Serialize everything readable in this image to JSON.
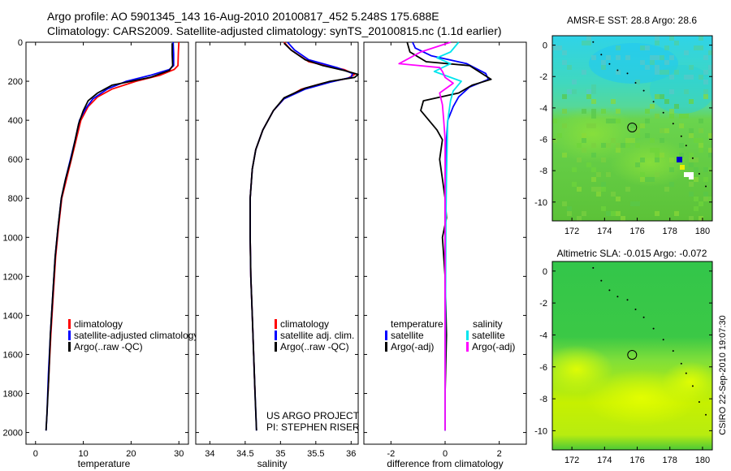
{
  "header": {
    "line1": "Argo profile: AO 5901345_143 16-Aug-2010 20100817_452 5.248S 175.688E",
    "line2": "Climatology: CARS2009. Satellite-adjusted climatology: synTS_20100815.nc (1.1d earlier)"
  },
  "colors": {
    "climatology": "#ff0000",
    "satellite": "#0000ff",
    "argo": "#000000",
    "argo_adj": "#ff00ff",
    "sat_salinity": "#00e5ee"
  },
  "chart_data": [
    {
      "type": "line",
      "name": "temperature",
      "xlabel": "temperature",
      "ylabel": "",
      "xlim": [
        -2,
        32
      ],
      "ylim": [
        2060,
        0
      ],
      "x_ticks": [
        0,
        10,
        20,
        30
      ],
      "y_ticks": [
        0,
        200,
        400,
        600,
        800,
        1000,
        1200,
        1400,
        1600,
        1800,
        2000
      ],
      "legend": [
        "climatology",
        "satellite-adjusted climatology",
        "Argo(..raw -QC)"
      ],
      "series": [
        {
          "name": "climatology",
          "color": "#ff0000",
          "points": [
            [
              30,
              0
            ],
            [
              29.9,
              50
            ],
            [
              29.8,
              120
            ],
            [
              29,
              140
            ],
            [
              26,
              170
            ],
            [
              21,
              200
            ],
            [
              16,
              240
            ],
            [
              13,
              280
            ],
            [
              11,
              330
            ],
            [
              9.5,
              400
            ],
            [
              8.5,
              500
            ],
            [
              7.5,
              600
            ],
            [
              6.5,
              700
            ],
            [
              5.5,
              800
            ],
            [
              4.8,
              950
            ],
            [
              4.2,
              1100
            ],
            [
              3.7,
              1300
            ],
            [
              3.2,
              1500
            ],
            [
              2.8,
              1700
            ],
            [
              2.6,
              1800
            ]
          ]
        },
        {
          "name": "satellite-adjusted climatology",
          "color": "#0000ff",
          "points": [
            [
              28.8,
              0
            ],
            [
              28.9,
              60
            ],
            [
              28.9,
              120
            ],
            [
              28,
              140
            ],
            [
              24,
              170
            ],
            [
              19,
              200
            ],
            [
              15,
              240
            ],
            [
              12,
              290
            ],
            [
              10.5,
              340
            ],
            [
              9.2,
              400
            ],
            [
              8.3,
              500
            ],
            [
              7.3,
              600
            ],
            [
              6.3,
              700
            ],
            [
              5.4,
              800
            ],
            [
              4.7,
              950
            ],
            [
              4.1,
              1100
            ],
            [
              3.6,
              1300
            ],
            [
              3.1,
              1500
            ],
            [
              2.7,
              1700
            ],
            [
              2.4,
              1900
            ],
            [
              2.2,
              1990
            ]
          ]
        },
        {
          "name": "Argo",
          "color": "#000000",
          "points": [
            [
              28.6,
              5
            ],
            [
              28.6,
              60
            ],
            [
              28.7,
              120
            ],
            [
              28,
              145
            ],
            [
              24,
              180
            ],
            [
              20,
              200
            ],
            [
              16,
              220
            ],
            [
              13,
              260
            ],
            [
              11,
              300
            ],
            [
              10,
              350
            ],
            [
              9,
              420
            ],
            [
              8.3,
              500
            ],
            [
              7.4,
              600
            ],
            [
              6.3,
              700
            ],
            [
              5.4,
              800
            ],
            [
              4.7,
              950
            ],
            [
              4.1,
              1100
            ],
            [
              3.6,
              1300
            ],
            [
              3.1,
              1500
            ],
            [
              2.8,
              1700
            ],
            [
              2.4,
              1900
            ],
            [
              2.2,
              1990
            ]
          ]
        }
      ]
    },
    {
      "type": "line",
      "name": "salinity",
      "xlabel": "salinity",
      "ylabel": "",
      "xlim": [
        33.8,
        36.1
      ],
      "ylim": [
        2060,
        0
      ],
      "x_ticks": [
        34,
        34.5,
        35,
        35.5,
        36
      ],
      "x_tick_labels": [
        "34",
        "34.5",
        "35",
        "35.5",
        "36"
      ],
      "legend": [
        "climatology",
        "satellite adj. clim.",
        "Argo(..raw -QC)"
      ],
      "annotations": [
        "US ARGO PROJECT",
        "PI: STEPHEN RISER"
      ],
      "series": [
        {
          "name": "climatology",
          "color": "#ff0000",
          "points": [
            [
              35.05,
              0
            ],
            [
              35.15,
              40
            ],
            [
              35.4,
              100
            ],
            [
              35.9,
              140
            ],
            [
              36.05,
              165
            ],
            [
              35.95,
              185
            ],
            [
              35.6,
              210
            ],
            [
              35.3,
              240
            ],
            [
              35.05,
              290
            ],
            [
              34.9,
              350
            ],
            [
              34.75,
              450
            ],
            [
              34.65,
              550
            ],
            [
              34.6,
              650
            ],
            [
              34.57,
              800
            ],
            [
              34.57,
              1000
            ],
            [
              34.58,
              1200
            ],
            [
              34.6,
              1400
            ],
            [
              34.62,
              1600
            ],
            [
              34.64,
              1800
            ]
          ]
        },
        {
          "name": "satellite adj. clim.",
          "color": "#0000ff",
          "points": [
            [
              35.1,
              0
            ],
            [
              35.2,
              40
            ],
            [
              35.4,
              90
            ],
            [
              35.8,
              130
            ],
            [
              36.02,
              160
            ],
            [
              36.0,
              180
            ],
            [
              35.7,
              205
            ],
            [
              35.35,
              240
            ],
            [
              35.05,
              290
            ],
            [
              34.9,
              350
            ],
            [
              34.75,
              450
            ],
            [
              34.65,
              550
            ],
            [
              34.6,
              650
            ],
            [
              34.57,
              800
            ],
            [
              34.57,
              1000
            ],
            [
              34.58,
              1200
            ],
            [
              34.6,
              1400
            ],
            [
              34.62,
              1600
            ],
            [
              34.64,
              1800
            ],
            [
              34.66,
              1990
            ]
          ]
        },
        {
          "name": "Argo",
          "color": "#000000",
          "points": [
            [
              35.05,
              5
            ],
            [
              35.15,
              40
            ],
            [
              35.35,
              90
            ],
            [
              35.6,
              120
            ],
            [
              35.9,
              145
            ],
            [
              36.1,
              165
            ],
            [
              36.05,
              180
            ],
            [
              35.7,
              200
            ],
            [
              35.35,
              235
            ],
            [
              35.05,
              285
            ],
            [
              34.9,
              350
            ],
            [
              34.75,
              450
            ],
            [
              34.65,
              550
            ],
            [
              34.6,
              650
            ],
            [
              34.57,
              800
            ],
            [
              34.57,
              1000
            ],
            [
              34.58,
              1200
            ],
            [
              34.6,
              1400
            ],
            [
              34.62,
              1600
            ],
            [
              34.64,
              1800
            ],
            [
              34.66,
              1990
            ]
          ]
        }
      ]
    },
    {
      "type": "line",
      "name": "difference",
      "xlabel": "difference from climatology",
      "ylabel": "",
      "xlim": [
        -3,
        3
      ],
      "ylim": [
        2060,
        0
      ],
      "x_ticks": [
        -2,
        0,
        2
      ],
      "legend_left": {
        "title": "temperature",
        "items": [
          "satellite",
          "Argo(-adj)"
        ]
      },
      "legend_right": {
        "title": "salinity",
        "items": [
          "satellite",
          "Argo(-adj)"
        ]
      },
      "series": [
        {
          "name": "temperature satellite",
          "color": "#0000ff",
          "points": [
            [
              -1.2,
              0
            ],
            [
              -1.1,
              30
            ],
            [
              -0.5,
              70
            ],
            [
              0.8,
              110
            ],
            [
              1.5,
              160
            ],
            [
              1.6,
              190
            ],
            [
              0.9,
              230
            ],
            [
              0.5,
              280
            ],
            [
              0.3,
              330
            ],
            [
              0.1,
              400
            ],
            [
              0.05,
              500
            ],
            [
              0.0,
              700
            ],
            [
              0.0,
              1000
            ],
            [
              0.0,
              1300
            ],
            [
              0.0,
              1600
            ],
            [
              0.0,
              1900
            ],
            [
              0.0,
              1990
            ]
          ]
        },
        {
          "name": "temperature Argo(-adj)",
          "color": "#000000",
          "points": [
            [
              -1.4,
              0
            ],
            [
              -1.3,
              50
            ],
            [
              -0.7,
              100
            ],
            [
              0.9,
              120
            ],
            [
              1.7,
              190
            ],
            [
              1.0,
              220
            ],
            [
              0.5,
              260
            ],
            [
              -0.8,
              300
            ],
            [
              -0.9,
              350
            ],
            [
              -0.6,
              400
            ],
            [
              -0.3,
              450
            ],
            [
              -0.1,
              500
            ],
            [
              -0.2,
              600
            ],
            [
              -0.1,
              700
            ],
            [
              0.0,
              800
            ],
            [
              0.05,
              900
            ],
            [
              -0.1,
              1000
            ],
            [
              0.0,
              1200
            ],
            [
              0.05,
              1500
            ],
            [
              0.0,
              1800
            ],
            [
              0.0,
              1990
            ]
          ]
        },
        {
          "name": "salinity satellite",
          "color": "#00e5ee",
          "points": [
            [
              0.5,
              0
            ],
            [
              0.2,
              50
            ],
            [
              -0.3,
              80
            ],
            [
              0.2,
              110
            ],
            [
              -0.4,
              150
            ],
            [
              0.6,
              200
            ],
            [
              0.3,
              250
            ],
            [
              0.2,
              300
            ],
            [
              0.1,
              400
            ],
            [
              0.08,
              500
            ],
            [
              0.05,
              700
            ],
            [
              0.03,
              900
            ],
            [
              0.02,
              1200
            ],
            [
              0.01,
              1500
            ],
            [
              0.0,
              1800
            ],
            [
              0.0,
              1990
            ]
          ]
        },
        {
          "name": "salinity Argo(-adj)",
          "color": "#ff00ff",
          "points": [
            [
              0.2,
              0
            ],
            [
              -0.9,
              50
            ],
            [
              -1.7,
              110
            ],
            [
              -0.2,
              130
            ],
            [
              -0.1,
              150
            ],
            [
              0.0,
              180
            ],
            [
              0.3,
              210
            ],
            [
              -0.2,
              260
            ],
            [
              -0.1,
              320
            ],
            [
              -0.05,
              400
            ],
            [
              0.0,
              500
            ],
            [
              0.0,
              800
            ],
            [
              0.0,
              1100
            ],
            [
              0.0,
              1400
            ],
            [
              0.0,
              1700
            ],
            [
              0.0,
              1990
            ]
          ]
        }
      ]
    },
    {
      "type": "heatmap",
      "name": "sst_map",
      "title": "AMSR-E SST: 28.8 Argo: 28.6",
      "xlim": [
        170.8,
        180.6
      ],
      "ylim": [
        -11.2,
        0.6
      ],
      "x_ticks": [
        172,
        174,
        176,
        178,
        180
      ],
      "y_ticks": [
        0,
        -2,
        -4,
        -6,
        -8,
        -10
      ],
      "argo_position": [
        175.688,
        -5.248
      ]
    },
    {
      "type": "heatmap",
      "name": "sla_map",
      "title": "Altimetric SLA: -0.015 Argo: -0.072",
      "xlim": [
        170.8,
        180.6
      ],
      "ylim": [
        -11.2,
        0.6
      ],
      "x_ticks": [
        172,
        174,
        176,
        178,
        180
      ],
      "y_ticks": [
        0,
        -2,
        -4,
        -6,
        -8,
        -10
      ],
      "argo_position": [
        175.688,
        -5.248
      ]
    }
  ],
  "footer": {
    "stamp": "CSIRO 22-Sep-2010 19:07:30"
  }
}
